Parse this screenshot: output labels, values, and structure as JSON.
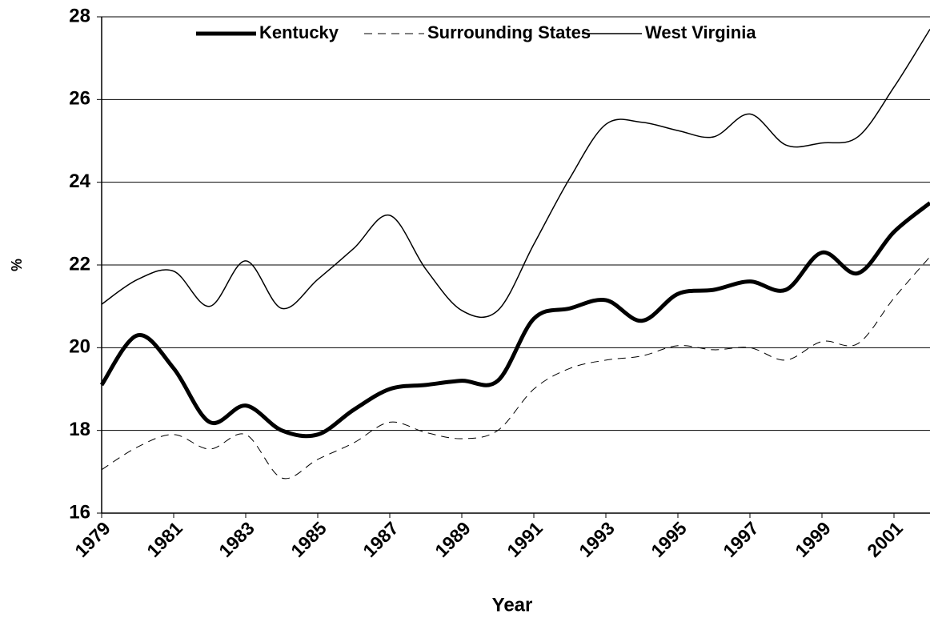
{
  "chart_data": {
    "type": "line",
    "x_label": "Year",
    "y_label": "%",
    "x": [
      1979,
      1980,
      1981,
      1982,
      1983,
      1984,
      1985,
      1986,
      1987,
      1988,
      1989,
      1990,
      1991,
      1992,
      1993,
      1994,
      1995,
      1996,
      1997,
      1998,
      1999,
      2000,
      2001,
      2002
    ],
    "series": [
      {
        "name": "Kentucky",
        "color": "#000000",
        "width": 5,
        "dash": false,
        "values": [
          19.1,
          20.3,
          19.5,
          18.2,
          18.6,
          18.0,
          17.9,
          18.5,
          19.0,
          19.1,
          19.2,
          19.2,
          20.7,
          20.95,
          21.15,
          20.65,
          21.3,
          21.4,
          21.6,
          21.4,
          22.3,
          21.8,
          22.8,
          23.5
        ]
      },
      {
        "name": "Surrounding States",
        "color": "#000000",
        "width": 1,
        "dash": true,
        "values": [
          17.05,
          17.6,
          17.9,
          17.55,
          17.9,
          16.85,
          17.3,
          17.7,
          18.2,
          17.95,
          17.8,
          18.0,
          19.0,
          19.5,
          19.7,
          19.8,
          20.05,
          19.95,
          20.0,
          19.7,
          20.15,
          20.1,
          21.2,
          22.2
        ]
      },
      {
        "name": "West Virginia",
        "color": "#000000",
        "width": 1.5,
        "dash": false,
        "values": [
          21.05,
          21.65,
          21.85,
          21.0,
          22.1,
          20.95,
          21.65,
          22.4,
          23.2,
          21.9,
          20.9,
          20.9,
          22.5,
          24.1,
          25.4,
          25.45,
          25.25,
          25.1,
          25.65,
          24.9,
          24.95,
          25.1,
          26.3,
          27.7
        ]
      }
    ],
    "xlim": [
      1979,
      2002
    ],
    "xticks": [
      1979,
      1981,
      1983,
      1985,
      1987,
      1989,
      1991,
      1993,
      1995,
      1997,
      1999,
      2001
    ],
    "ylim": [
      16,
      28
    ],
    "yticks": [
      16,
      18,
      20,
      22,
      24,
      26,
      28
    ],
    "grid": true,
    "legend": "top"
  }
}
